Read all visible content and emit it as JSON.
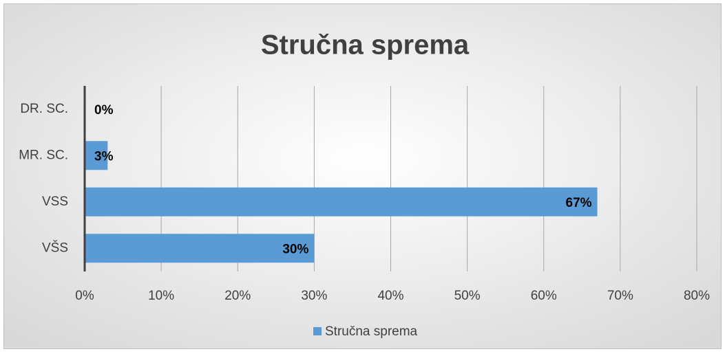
{
  "chart_data": {
    "type": "bar",
    "orientation": "horizontal",
    "title": "Stručna sprema",
    "categories": [
      "DR. SC.",
      "MR. SC.",
      "VSS",
      "VŠS"
    ],
    "series": [
      {
        "name": "Stručna sprema",
        "color": "#5b9bd5",
        "values": [
          0,
          3,
          67,
          30
        ],
        "value_labels": [
          "0%",
          "3%",
          "67%",
          "30%"
        ]
      }
    ],
    "xlim": [
      0,
      80
    ],
    "xticks": [
      {
        "value": 0,
        "label": "0%"
      },
      {
        "value": 10,
        "label": "10%"
      },
      {
        "value": 20,
        "label": "20%"
      },
      {
        "value": 30,
        "label": "30%"
      },
      {
        "value": 40,
        "label": "40%"
      },
      {
        "value": 50,
        "label": "50%"
      },
      {
        "value": 60,
        "label": "60%"
      },
      {
        "value": 70,
        "label": "70%"
      },
      {
        "value": 80,
        "label": "80%"
      }
    ],
    "grid": true,
    "legend": "bottom"
  }
}
